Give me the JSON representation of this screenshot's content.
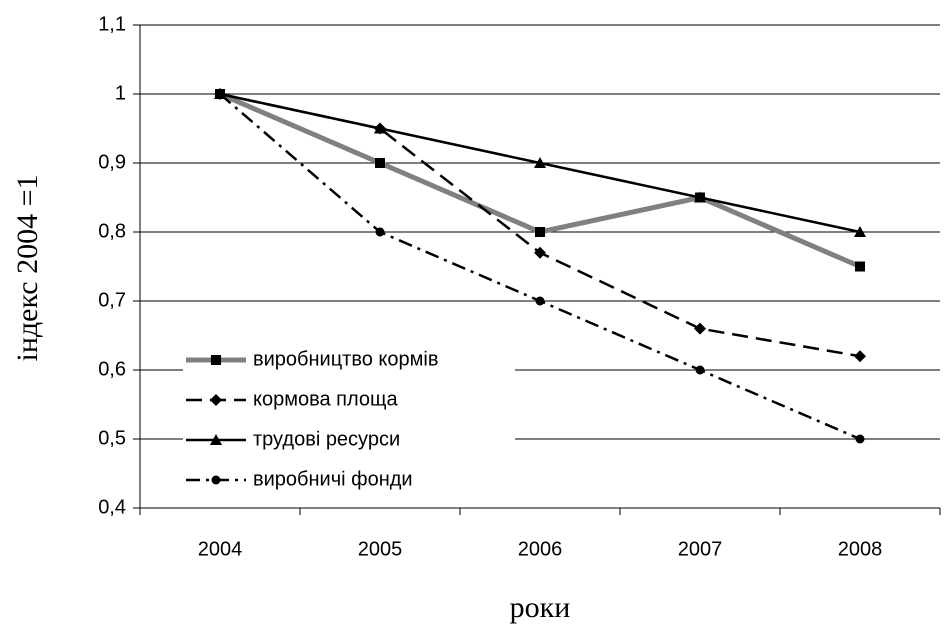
{
  "chart_data": {
    "type": "line",
    "y_label": "індекс 2004 =1",
    "x_label": "роки",
    "categories": [
      "2004",
      "2005",
      "2006",
      "2007",
      "2008"
    ],
    "series": [
      {
        "name": "виробництво кормів",
        "color": "#808080",
        "line_style": "solid",
        "line_width": 5,
        "marker": "square",
        "values": [
          1,
          0.9,
          0.8,
          0.85,
          0.75
        ]
      },
      {
        "name": "кормова площа",
        "color": "#000000",
        "line_style": "dashed",
        "line_width": 2.5,
        "marker": "diamond",
        "values": [
          1,
          0.95,
          0.77,
          0.66,
          0.62
        ]
      },
      {
        "name": "трудові ресурси",
        "color": "#000000",
        "line_style": "solid",
        "line_width": 2.5,
        "marker": "triangle",
        "values": [
          1,
          0.95,
          0.9,
          0.85,
          0.8
        ]
      },
      {
        "name": "виробничі фонди",
        "color": "#000000",
        "line_style": "dashdot",
        "line_width": 2.5,
        "marker": "circle",
        "values": [
          1,
          0.8,
          0.7,
          0.6,
          0.5
        ]
      }
    ],
    "ylim": [
      0.4,
      1.1
    ],
    "yticks": [
      {
        "value": 0.4,
        "label": "0,4"
      },
      {
        "value": 0.5,
        "label": "0,5"
      },
      {
        "value": 0.6,
        "label": "0,6"
      },
      {
        "value": 0.7,
        "label": "0,7"
      },
      {
        "value": 0.8,
        "label": "0,8"
      },
      {
        "value": 0.9,
        "label": "0,9"
      },
      1,
      {
        "value": 1.1,
        "label": "1,1"
      }
    ],
    "grid": true,
    "legend": "lower left"
  }
}
